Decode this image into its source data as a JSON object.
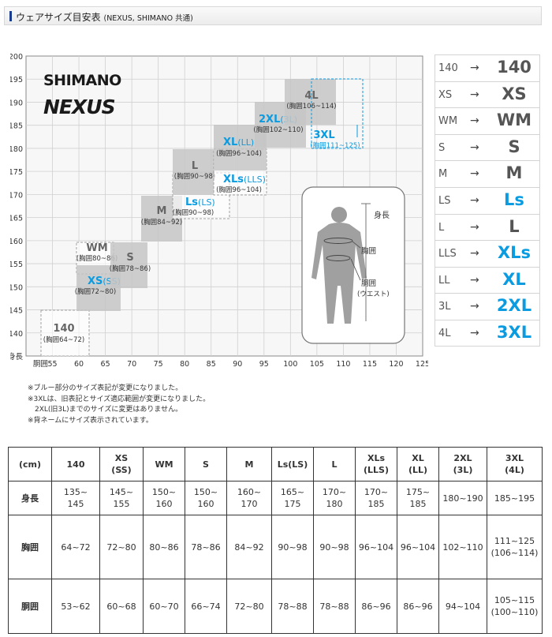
{
  "header": {
    "title": "ウェアサイズ目安表",
    "subtitle": "(NEXUS, SHIMANO 共通)"
  },
  "brand": {
    "shimano": "SHIMANO",
    "nexus": "NEXUS"
  },
  "chart": {
    "y_ticks": [
      "200",
      "195",
      "190",
      "185",
      "180",
      "175",
      "170",
      "165",
      "160",
      "155",
      "150",
      "145",
      "140"
    ],
    "y_axis_label": "身長",
    "x_axis_label": "胴囲",
    "x_ticks": [
      "55",
      "60",
      "65",
      "70",
      "75",
      "80",
      "85",
      "90",
      "95",
      "100",
      "105",
      "110",
      "115",
      "120",
      "125"
    ],
    "body_labels": {
      "height": "身長",
      "chest": "胸囲",
      "waist_1": "胴囲",
      "waist_2": "(ウエスト)"
    },
    "boxes": [
      {
        "name": "140",
        "name_color": "gray",
        "range": "(胸囲64~72)"
      },
      {
        "name": "WM",
        "name_color": "gray",
        "range": "(胸囲80~86)"
      },
      {
        "name": "XS",
        "alt": "(SS)",
        "name_color": "blue",
        "range": "(胸囲72~80)"
      },
      {
        "name": "S",
        "name_color": "gray",
        "range": "(胸囲78~86)"
      },
      {
        "name": "M",
        "name_color": "gray",
        "range": "(胸囲84~92)"
      },
      {
        "name": "Ls",
        "alt": "(LS)",
        "name_color": "blue",
        "range": "(胸囲90~98)"
      },
      {
        "name": "L",
        "name_color": "gray",
        "range": "(胸囲90~98)"
      },
      {
        "name": "XLs",
        "alt": "(LLS)",
        "name_color": "blue",
        "range": "(胸囲96~104)"
      },
      {
        "name": "XL",
        "alt": "(LL)",
        "name_color": "blue",
        "range": "(胸囲96~104)"
      },
      {
        "name": "2XL",
        "alt": "(3L)",
        "name_color": "blue",
        "range": "(胸囲102~110)"
      },
      {
        "name": "4L",
        "name_color": "gray",
        "range": "(胸囲106~114)"
      },
      {
        "name": "3XL",
        "name_color": "blue",
        "range": "(胸囲111~125)"
      }
    ]
  },
  "legend": [
    {
      "old": "140",
      "new": "140",
      "blue": false
    },
    {
      "old": "XS",
      "new": "XS",
      "blue": false
    },
    {
      "old": "WM",
      "new": "WM",
      "blue": false
    },
    {
      "old": "S",
      "new": "S",
      "blue": false
    },
    {
      "old": "M",
      "new": "M",
      "blue": false
    },
    {
      "old": "LS",
      "new": "Ls",
      "blue": true
    },
    {
      "old": "L",
      "new": "L",
      "blue": false
    },
    {
      "old": "LLS",
      "new": "XLs",
      "blue": true
    },
    {
      "old": "LL",
      "new": "XL",
      "blue": true
    },
    {
      "old": "3L",
      "new": "2XL",
      "blue": true
    },
    {
      "old": "4L",
      "new": "3XL",
      "blue": true
    }
  ],
  "legend_arrow": "→",
  "notes": [
    "※ブルー部分のサイズ表記が変更になりました。",
    "※3XLは、旧表記とサイズ適応範囲が変更になりました。",
    "　2XL(旧3L)までのサイズに変更はありません。",
    "※背ネームにサイズ表示されています。"
  ],
  "table": {
    "headers": [
      [
        "(cm)"
      ],
      [
        "140"
      ],
      [
        "XS",
        "(SS)"
      ],
      [
        "WM"
      ],
      [
        "S"
      ],
      [
        "M"
      ],
      [
        "Ls(LS)"
      ],
      [
        "L"
      ],
      [
        "XLs",
        "(LLS)"
      ],
      [
        "XL",
        "(LL)"
      ],
      [
        "2XL",
        "(3L)"
      ],
      [
        "3XL",
        "(4L)"
      ]
    ],
    "rows": [
      {
        "label": "身長",
        "cells": [
          [
            "135~",
            "145"
          ],
          [
            "145~",
            "155"
          ],
          [
            "150~",
            "160"
          ],
          [
            "150~",
            "160"
          ],
          [
            "160~",
            "170"
          ],
          [
            "165~",
            "175"
          ],
          [
            "170~",
            "180"
          ],
          [
            "170~",
            "185"
          ],
          [
            "175~",
            "185"
          ],
          [
            "180~190"
          ],
          [
            "185~195"
          ]
        ]
      },
      {
        "label": "胸囲",
        "cells": [
          [
            "64~72"
          ],
          [
            "72~80"
          ],
          [
            "80~86"
          ],
          [
            "78~86"
          ],
          [
            "84~92"
          ],
          [
            "90~98"
          ],
          [
            "90~98"
          ],
          [
            "96~104"
          ],
          [
            "96~104"
          ],
          [
            "102~110"
          ],
          [
            "111~125",
            "(106~114)"
          ]
        ]
      },
      {
        "label": "胴囲",
        "cells": [
          [
            "53~62"
          ],
          [
            "60~68"
          ],
          [
            "60~70"
          ],
          [
            "66~74"
          ],
          [
            "72~80"
          ],
          [
            "78~88"
          ],
          [
            "78~88"
          ],
          [
            "86~96"
          ],
          [
            "86~96"
          ],
          [
            "94~104"
          ],
          [
            "105~115",
            "(100~110)"
          ]
        ]
      }
    ]
  },
  "colors": {
    "blue": "#0b9be0",
    "gray_text": "#666666",
    "box_fill": "#c6c6c6",
    "header_bar": "#1a3c8f"
  }
}
